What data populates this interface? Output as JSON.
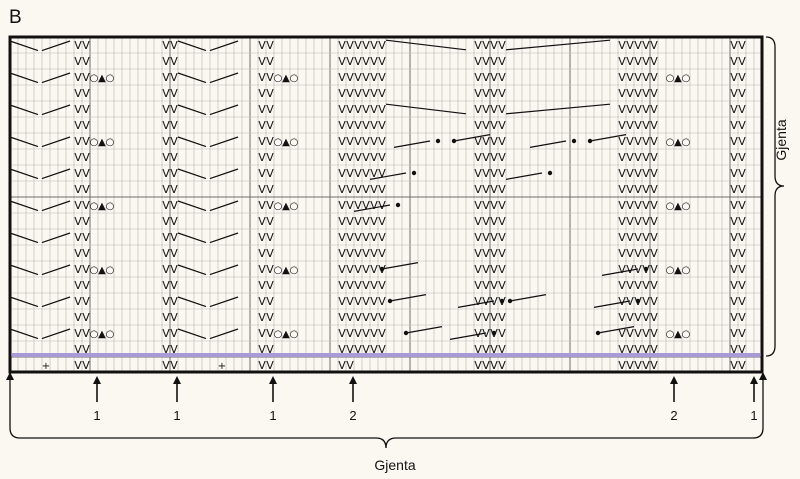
{
  "chart": {
    "letter": "B",
    "side_repeat_label": "Gjenta",
    "bottom_repeat_label": "Gjenta"
  },
  "markers": [
    "1",
    "1",
    "1",
    "2",
    "2",
    "1"
  ],
  "symbols": {
    "slip": "V",
    "yarn_over": "○",
    "triangle": "▲",
    "dot": "●",
    "plus": "+"
  },
  "colors": {
    "background": "#fbf8f1",
    "grid_line": "#8a8a8a",
    "highlight_row": "#a79ad6"
  }
}
